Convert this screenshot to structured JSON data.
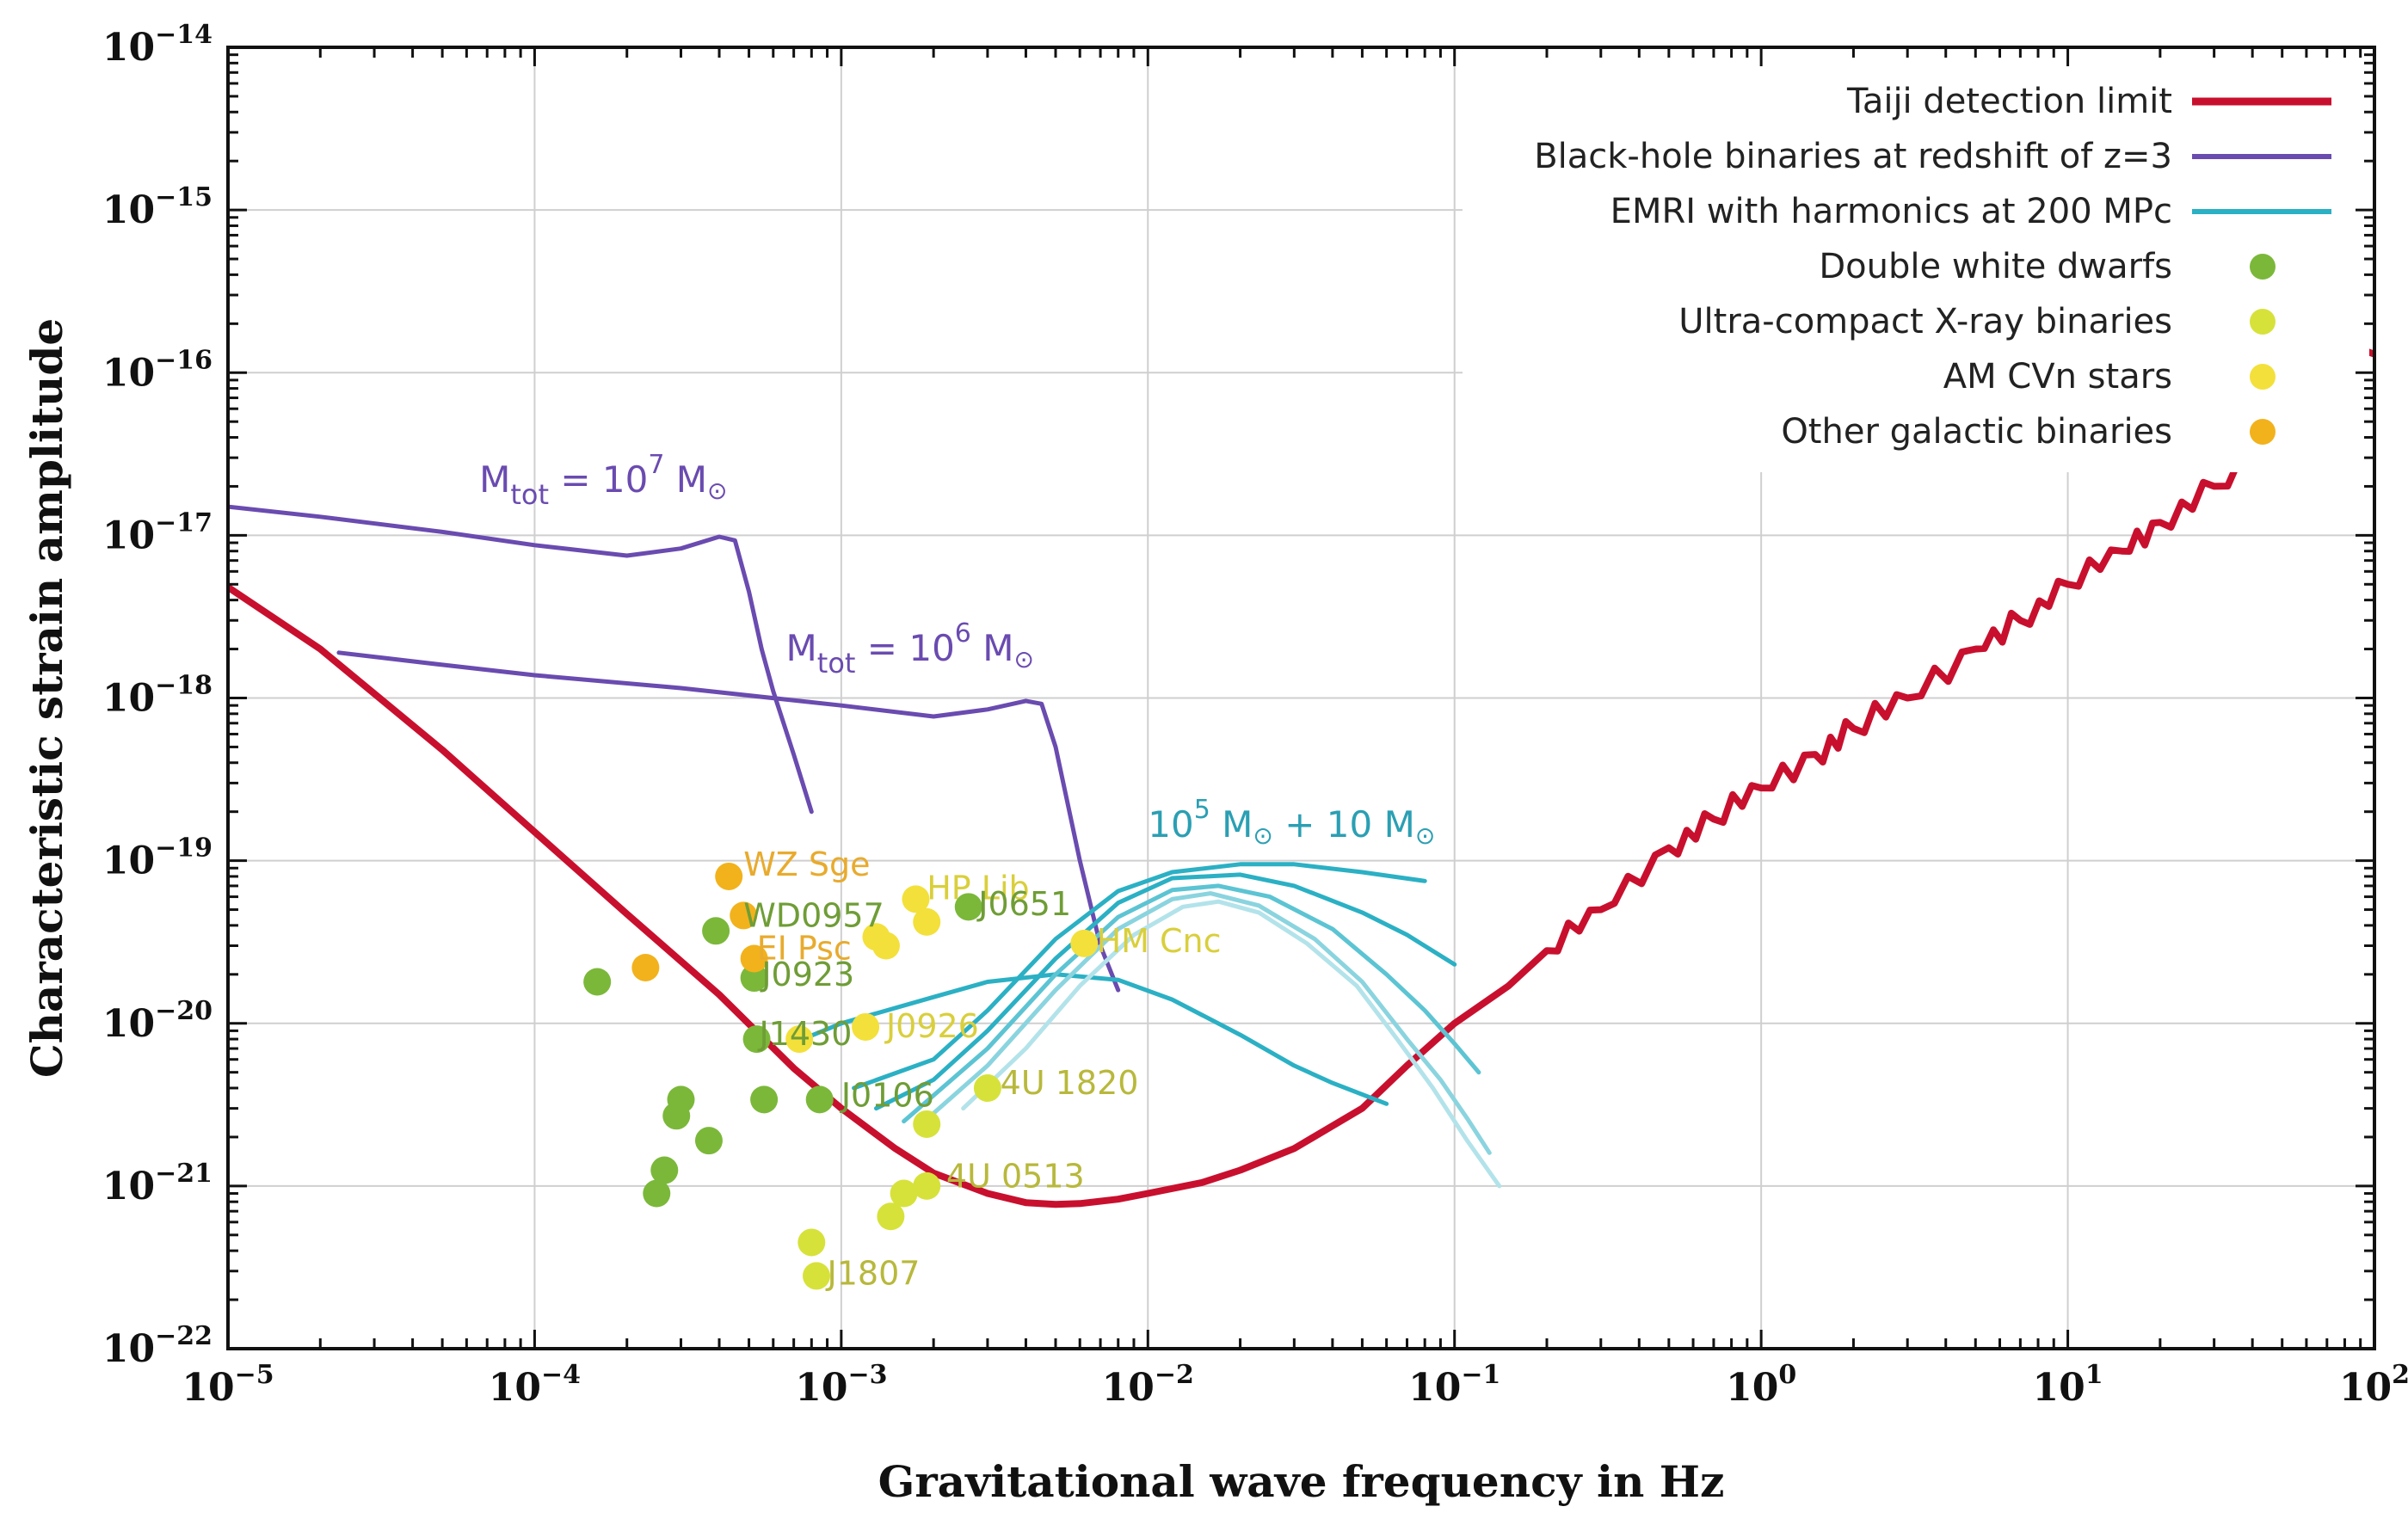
{
  "chart_data": {
    "type": "line",
    "xlabel": "Gravitational wave frequency in Hz",
    "ylabel": "Characteristic strain amplitude",
    "xscale": "log",
    "yscale": "log",
    "xlim": [
      1e-05,
      100
    ],
    "ylim": [
      1e-22,
      1e-14
    ],
    "grid": true,
    "legend_position": "top-right",
    "x_ticks": [
      {
        "base": "10",
        "exp": "−5",
        "value": 1e-05
      },
      {
        "base": "10",
        "exp": "−4",
        "value": 0.0001
      },
      {
        "base": "10",
        "exp": "−3",
        "value": 0.001
      },
      {
        "base": "10",
        "exp": "−2",
        "value": 0.01
      },
      {
        "base": "10",
        "exp": "−1",
        "value": 0.1
      },
      {
        "base": "10",
        "exp": "0",
        "value": 1
      },
      {
        "base": "10",
        "exp": "1",
        "value": 10
      },
      {
        "base": "10",
        "exp": "2",
        "value": 100
      }
    ],
    "y_ticks": [
      {
        "base": "10",
        "exp": "−14",
        "value": 1e-14
      },
      {
        "base": "10",
        "exp": "−15",
        "value": 1e-15
      },
      {
        "base": "10",
        "exp": "−16",
        "value": 1e-16
      },
      {
        "base": "10",
        "exp": "−17",
        "value": 1e-17
      },
      {
        "base": "10",
        "exp": "−18",
        "value": 1e-18
      },
      {
        "base": "10",
        "exp": "−19",
        "value": 1e-19
      },
      {
        "base": "10",
        "exp": "−20",
        "value": 1e-20
      },
      {
        "base": "10",
        "exp": "−21",
        "value": 1e-21
      },
      {
        "base": "10",
        "exp": "−22",
        "value": 1e-22
      }
    ],
    "colors": {
      "taiji": "#c8102e",
      "bh": "#6a4bb0",
      "emri": "#2bb0c4",
      "emri_light": [
        "#5cc4d3",
        "#8ad4df",
        "#b3e3ea"
      ],
      "double_white_dwarfs": "#7bb83a",
      "ultra_compact_xray": "#d6e23a",
      "am_cvn": "#f3e03a",
      "other_galactic": "#f2b21c"
    },
    "legend": [
      {
        "label": "Taiji detection limit",
        "marker": "line",
        "color": "#c8102e"
      },
      {
        "label": "Black-hole binaries at redshift of z=3",
        "marker": "line",
        "color": "#6a4bb0"
      },
      {
        "label": "EMRI with harmonics at 200 MPc",
        "marker": "line",
        "color": "#2bb0c4"
      },
      {
        "label": "Double white dwarfs",
        "marker": "dot",
        "color": "#7bb83a"
      },
      {
        "label": "Ultra-compact X-ray binaries",
        "marker": "dot",
        "color": "#d6e23a"
      },
      {
        "label": "AM CVn stars",
        "marker": "dot",
        "color": "#f3e03a"
      },
      {
        "label": "Other galactic binaries",
        "marker": "dot",
        "color": "#f2b21c"
      }
    ],
    "series": [
      {
        "name": "Taiji detection limit",
        "color": "#c8102e",
        "x": [
          1e-05,
          2e-05,
          5e-05,
          0.0001,
          0.0002,
          0.0004,
          0.0007,
          0.001,
          0.0015,
          0.002,
          0.003,
          0.004,
          0.005,
          0.006,
          0.008,
          0.01,
          0.015,
          0.02,
          0.03,
          0.05,
          0.07,
          0.1,
          0.15,
          0.2,
          0.3,
          0.5,
          0.7,
          1,
          1.5,
          2,
          3,
          5,
          7,
          10,
          15,
          20,
          30,
          50,
          70,
          100
        ],
        "y": [
          4.8e-18,
          2e-18,
          4.8e-19,
          1.5e-19,
          4.7e-20,
          1.5e-20,
          5.3e-21,
          3e-21,
          1.7e-21,
          1.2e-21,
          9e-22,
          7.9e-22,
          7.7e-22,
          7.8e-22,
          8.3e-22,
          9e-22,
          1.05e-21,
          1.25e-21,
          1.7e-21,
          3e-21,
          5.5e-21,
          1e-20,
          1.7e-20,
          2.8e-20,
          5e-20,
          1.2e-19,
          1.8e-19,
          2.8e-19,
          4.5e-19,
          6.5e-19,
          1e-18,
          2e-18,
          3e-18,
          5e-18,
          8e-18,
          1.2e-17,
          2e-17,
          4e-17,
          7e-17,
          1.3e-16
        ]
      },
      {
        "name": "Mtot = 10^7",
        "color": "#6a4bb0",
        "x": [
          1e-05,
          2e-05,
          5e-05,
          0.0001,
          0.0002,
          0.0003,
          0.0004,
          0.00045,
          0.0005,
          0.00055,
          0.0006,
          0.0007,
          0.0008
        ],
        "y": [
          1.5e-17,
          1.3e-17,
          1.05e-17,
          8.7e-18,
          7.5e-18,
          8.3e-18,
          9.8e-18,
          9.3e-18,
          4.5e-18,
          2e-18,
          1.1e-18,
          4.5e-19,
          2e-19
        ]
      },
      {
        "name": "Mtot = 10^6",
        "color": "#6a4bb0",
        "x": [
          2.3e-05,
          5e-05,
          0.0001,
          0.0003,
          0.001,
          0.002,
          0.003,
          0.004,
          0.0045,
          0.005,
          0.006,
          0.007,
          0.008
        ],
        "y": [
          1.9e-18,
          1.6e-18,
          1.38e-18,
          1.15e-18,
          9e-19,
          7.7e-19,
          8.5e-19,
          9.6e-19,
          9.2e-19,
          5e-19,
          1e-19,
          3e-20,
          1.6e-20
        ]
      },
      {
        "name": "EMRI h1",
        "color": "#2bb0c4",
        "x": [
          0.00075,
          0.001,
          0.002,
          0.003,
          0.005,
          0.008,
          0.012,
          0.02,
          0.03,
          0.04,
          0.06
        ],
        "y": [
          8e-21,
          1e-20,
          1.45e-20,
          1.8e-20,
          2e-20,
          1.85e-20,
          1.4e-20,
          8.5e-21,
          5.5e-21,
          4.3e-21,
          3.2e-21
        ]
      },
      {
        "name": "EMRI h2",
        "color": "#2bb0c4",
        "x": [
          0.0011,
          0.002,
          0.003,
          0.005,
          0.008,
          0.012,
          0.02,
          0.03,
          0.05,
          0.08
        ],
        "y": [
          4e-21,
          6e-21,
          1.2e-20,
          3.3e-20,
          6.5e-20,
          8.5e-20,
          9.5e-20,
          9.5e-20,
          8.5e-20,
          7.5e-20
        ]
      },
      {
        "name": "EMRI h3",
        "color": "#2bb0c4",
        "x": [
          0.0013,
          0.002,
          0.003,
          0.005,
          0.008,
          0.012,
          0.02,
          0.03,
          0.05,
          0.07,
          0.1
        ],
        "y": [
          3e-21,
          4.5e-21,
          9e-21,
          2.5e-20,
          5.5e-20,
          7.8e-20,
          8.2e-20,
          7e-20,
          4.8e-20,
          3.5e-20,
          2.3e-20
        ]
      },
      {
        "name": "EMRI h4",
        "color": "#5cc4d3",
        "x": [
          0.0016,
          0.003,
          0.005,
          0.008,
          0.012,
          0.017,
          0.025,
          0.04,
          0.06,
          0.08,
          0.1,
          0.12
        ],
        "y": [
          2.5e-21,
          7e-21,
          2e-20,
          4.5e-20,
          6.6e-20,
          7e-20,
          6e-20,
          3.8e-20,
          2e-20,
          1.2e-20,
          7.5e-21,
          5e-21
        ]
      },
      {
        "name": "EMRI h5",
        "color": "#8ad4df",
        "x": [
          0.002,
          0.003,
          0.005,
          0.008,
          0.012,
          0.016,
          0.023,
          0.035,
          0.05,
          0.07,
          0.09,
          0.11,
          0.13
        ],
        "y": [
          2.8e-21,
          5.5e-21,
          1.6e-20,
          3.8e-20,
          5.8e-20,
          6.3e-20,
          5.3e-20,
          3.3e-20,
          1.8e-20,
          8e-21,
          4.5e-21,
          2.6e-21,
          1.6e-21
        ]
      },
      {
        "name": "EMRI h6",
        "color": "#b3e3ea",
        "x": [
          0.0025,
          0.004,
          0.006,
          0.009,
          0.013,
          0.017,
          0.023,
          0.033,
          0.048,
          0.065,
          0.085,
          0.11,
          0.14
        ],
        "y": [
          3e-21,
          7e-21,
          1.7e-20,
          3.5e-20,
          5.2e-20,
          5.6e-20,
          4.8e-20,
          3.1e-20,
          1.7e-20,
          8e-21,
          4e-21,
          1.9e-21,
          1e-21
        ]
      }
    ],
    "points": [
      {
        "group": "double_white_dwarfs",
        "x": 0.00016,
        "y": 1.8e-20
      },
      {
        "group": "double_white_dwarfs",
        "x": 0.00025,
        "y": 9e-22
      },
      {
        "group": "double_white_dwarfs",
        "x": 0.000265,
        "y": 1.25e-21
      },
      {
        "group": "double_white_dwarfs",
        "x": 0.00029,
        "y": 2.7e-21
      },
      {
        "group": "double_white_dwarfs",
        "x": 0.0003,
        "y": 3.4e-21
      },
      {
        "group": "double_white_dwarfs",
        "x": 0.00037,
        "y": 1.9e-21
      },
      {
        "group": "double_white_dwarfs",
        "x": 0.00039,
        "y": 3.7e-20
      },
      {
        "group": "double_white_dwarfs",
        "x": 0.00052,
        "y": 1.9e-20
      },
      {
        "group": "double_white_dwarfs",
        "x": 0.00053,
        "y": 8e-21
      },
      {
        "group": "double_white_dwarfs",
        "x": 0.00056,
        "y": 3.4e-21
      },
      {
        "group": "double_white_dwarfs",
        "x": 0.00085,
        "y": 3.4e-21
      },
      {
        "group": "double_white_dwarfs",
        "x": 0.0026,
        "y": 5.2e-20
      },
      {
        "group": "ultra_compact_xray",
        "x": 0.0008,
        "y": 4.5e-22
      },
      {
        "group": "ultra_compact_xray",
        "x": 0.00083,
        "y": 2.8e-22
      },
      {
        "group": "ultra_compact_xray",
        "x": 0.00145,
        "y": 6.5e-22
      },
      {
        "group": "ultra_compact_xray",
        "x": 0.0016,
        "y": 9e-22
      },
      {
        "group": "ultra_compact_xray",
        "x": 0.0019,
        "y": 1e-21
      },
      {
        "group": "ultra_compact_xray",
        "x": 0.0019,
        "y": 2.4e-21
      },
      {
        "group": "ultra_compact_xray",
        "x": 0.003,
        "y": 4e-21
      },
      {
        "group": "am_cvn",
        "x": 0.00073,
        "y": 8e-21
      },
      {
        "group": "am_cvn",
        "x": 0.0012,
        "y": 9.5e-21
      },
      {
        "group": "am_cvn",
        "x": 0.0013,
        "y": 3.4e-20
      },
      {
        "group": "am_cvn",
        "x": 0.0014,
        "y": 3e-20
      },
      {
        "group": "am_cvn",
        "x": 0.00175,
        "y": 5.8e-20
      },
      {
        "group": "am_cvn",
        "x": 0.0019,
        "y": 4.2e-20
      },
      {
        "group": "am_cvn",
        "x": 0.0062,
        "y": 3.1e-20
      },
      {
        "group": "other_galactic",
        "x": 0.00023,
        "y": 2.2e-20
      },
      {
        "group": "other_galactic",
        "x": 0.00043,
        "y": 8e-20
      },
      {
        "group": "other_galactic",
        "x": 0.00048,
        "y": 4.6e-20
      },
      {
        "group": "other_galactic",
        "x": 0.00052,
        "y": 2.5e-20
      }
    ],
    "annotations": [
      {
        "text": "WZ Sge",
        "x": 0.00048,
        "y": 9.5e-20,
        "color": "#e8ab2e"
      },
      {
        "text": "HP Lib",
        "x": 0.0019,
        "y": 6.8e-20,
        "color": "#d9cf3c"
      },
      {
        "text": "J0651",
        "x": 0.0028,
        "y": 5.4e-20,
        "color": "#6f9d36"
      },
      {
        "text": "HM Cnc",
        "x": 0.0068,
        "y": 3.2e-20,
        "color": "#d9cf3c"
      },
      {
        "text": "WD0957",
        "x": 0.00048,
        "y": 4.6e-20,
        "color": "#6f9d36"
      },
      {
        "text": "EI Psc",
        "x": 0.00053,
        "y": 2.9e-20,
        "color": "#e8ab2e"
      },
      {
        "text": "J0923",
        "x": 0.00055,
        "y": 2e-20,
        "color": "#6f9d36"
      },
      {
        "text": "J1430",
        "x": 0.00054,
        "y": 8.6e-21,
        "color": "#6f9d36"
      },
      {
        "text": "J0926",
        "x": 0.0014,
        "y": 9.6e-21,
        "color": "#d9cf3c"
      },
      {
        "text": "J0106",
        "x": 0.001,
        "y": 3.6e-21,
        "color": "#6f9d36"
      },
      {
        "text": "4U 1820",
        "x": 0.0033,
        "y": 4.3e-21,
        "color": "#b8b83c"
      },
      {
        "text": "4U 0513",
        "x": 0.0022,
        "y": 1.15e-21,
        "color": "#b8b83c"
      },
      {
        "text": "J1807",
        "x": 0.0009,
        "y": 2.9e-22,
        "color": "#b8b83c"
      }
    ],
    "mass_labels": [
      {
        "base": "M",
        "sub": "tot",
        "mid": " = 10",
        "sup": "7",
        "unit": " M",
        "sun": "⊙",
        "x": 6.6e-05,
        "y": 1.85e-17,
        "color": "#6a4bb0"
      },
      {
        "base": "M",
        "sub": "tot",
        "mid": " = 10",
        "sup": "6",
        "unit": " M",
        "sun": "⊙",
        "x": 0.00066,
        "y": 1.7e-18,
        "color": "#6a4bb0"
      },
      {
        "base": "10",
        "sup": "5",
        "mid": " M",
        "sun": "⊙",
        "unit": " + 10 M",
        "sun2": "⊙",
        "x": 0.01,
        "y": 1.4e-19,
        "color": "#2b9fb3"
      }
    ]
  }
}
